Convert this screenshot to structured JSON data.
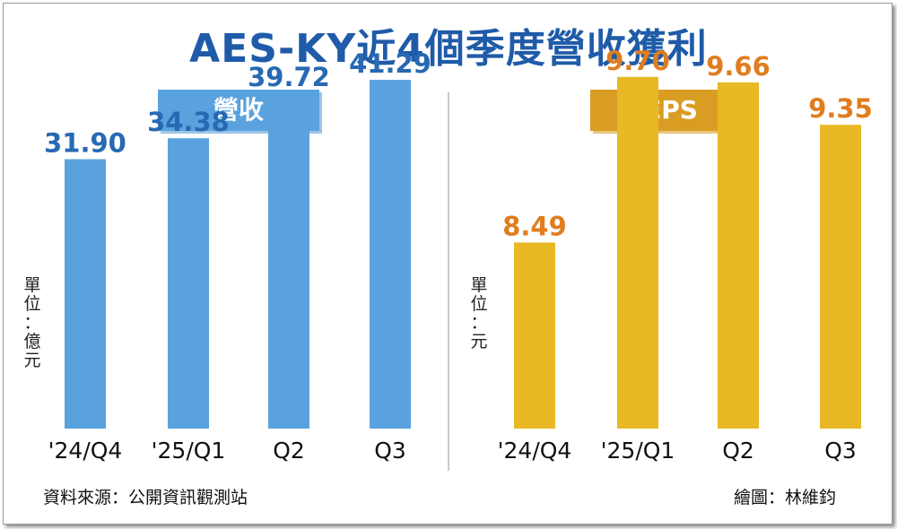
{
  "title": "AES-KY近4個季度營收獲利",
  "source": "資料來源：公開資訊觀測站",
  "credit": "繪圖：林維鈞",
  "colors": {
    "title": "#1f5ba8",
    "revenue": "#5aa2de",
    "revenue_label": "#2769b3",
    "eps": "#e8b825",
    "eps_label": "#e07d1f",
    "eps_header": "#d99d23"
  },
  "chart_data": [
    {
      "type": "bar",
      "title": "營收",
      "unit": [
        "單",
        "位",
        "：",
        "億",
        "元"
      ],
      "categories": [
        "'24/Q4",
        "'25/Q1",
        "Q2",
        "Q3"
      ],
      "values": [
        31.9,
        34.38,
        39.72,
        41.29
      ],
      "value_labels": [
        "31.90",
        "34.38",
        "39.72",
        "41.29"
      ],
      "ylim": [
        0,
        46.5
      ]
    },
    {
      "type": "bar",
      "title": "EPS",
      "unit": [
        "單",
        "位",
        "：",
        "元"
      ],
      "categories": [
        "'24/Q4",
        "'25/Q1",
        "Q2",
        "Q3"
      ],
      "values": [
        8.49,
        9.7,
        9.66,
        9.35
      ],
      "value_labels": [
        "8.49",
        "9.70",
        "9.66",
        "9.35"
      ],
      "ylim": [
        7.13,
        10.0
      ]
    }
  ]
}
